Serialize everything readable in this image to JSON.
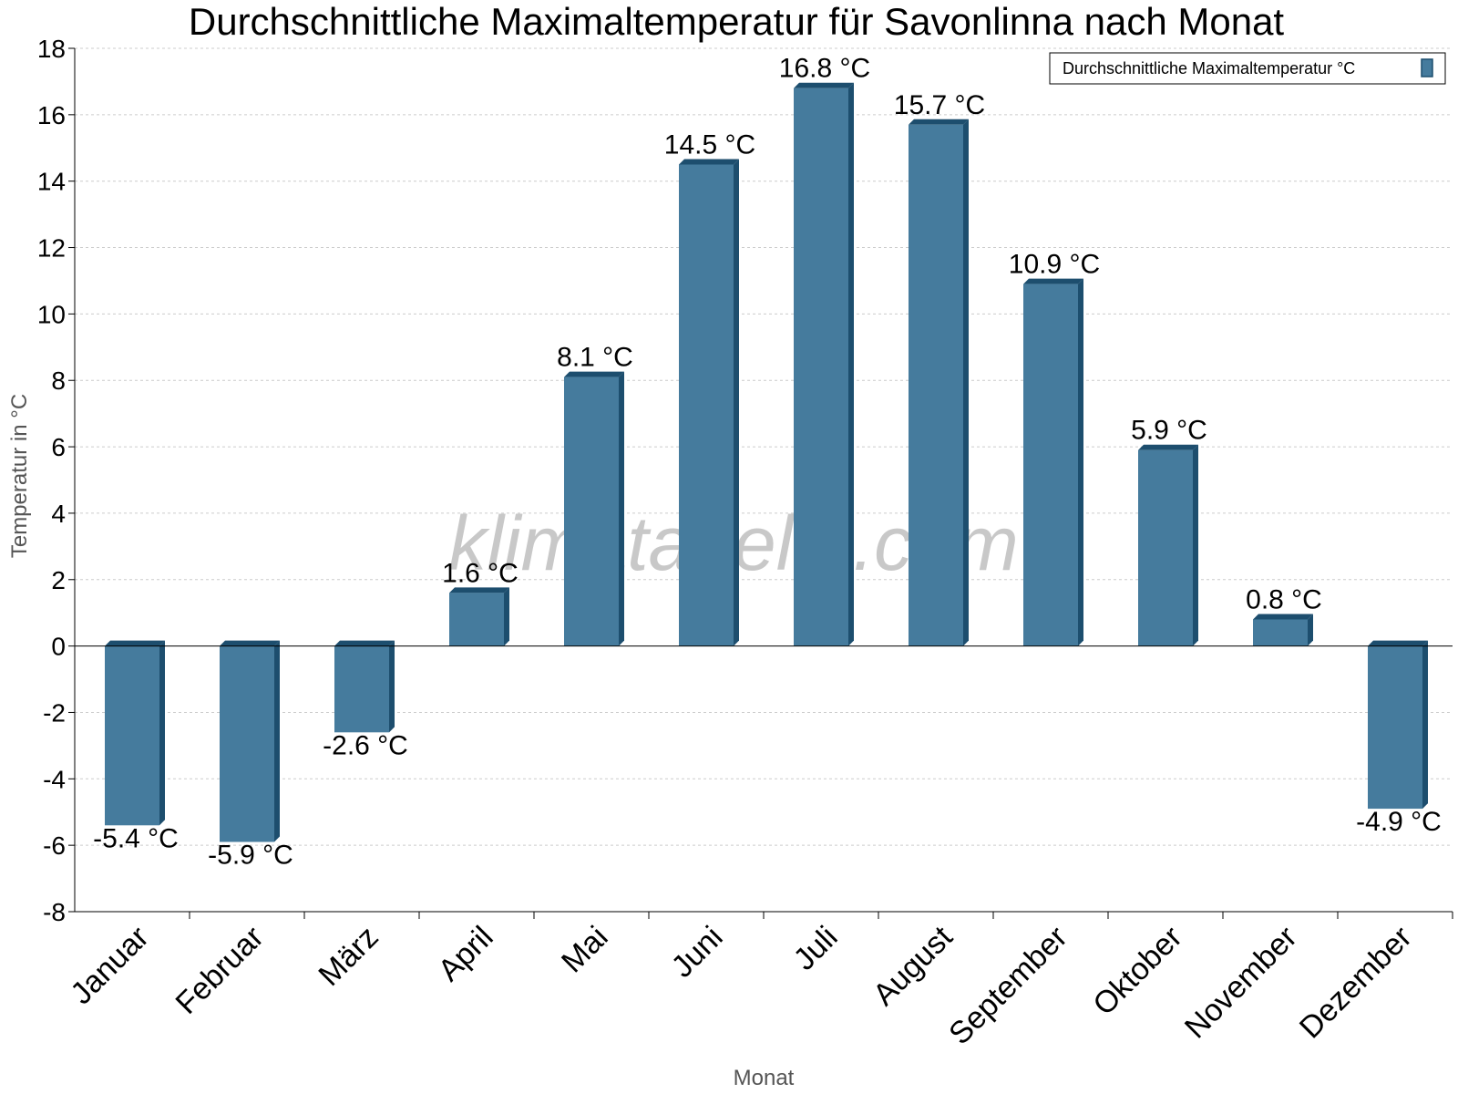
{
  "chart_data": {
    "type": "bar",
    "title": "Durchschnittliche Maximaltemperatur für Savonlinna nach Monat",
    "xlabel": "Monat",
    "ylabel": "Temperatur in °C",
    "ylim": [
      -8,
      18
    ],
    "yticks": [
      -8,
      -6,
      -4,
      -2,
      0,
      2,
      4,
      6,
      8,
      10,
      12,
      14,
      16,
      18
    ],
    "grid": true,
    "legend_position": "top-right",
    "categories": [
      "Januar",
      "Februar",
      "März",
      "April",
      "Mai",
      "Juni",
      "Juli",
      "August",
      "September",
      "Oktober",
      "November",
      "Dezember"
    ],
    "series": [
      {
        "name": "Durchschnittliche Maximaltemperatur °C",
        "values": [
          -5.4,
          -5.9,
          -2.6,
          1.6,
          8.1,
          14.5,
          16.8,
          15.7,
          10.9,
          5.9,
          0.8,
          -4.9
        ],
        "data_labels": [
          "-5.4 °C",
          "-5.9 °C",
          "-2.6 °C",
          "1.6 °C",
          "8.1 °C",
          "14.5 °C",
          "16.8 °C",
          "15.7 °C",
          "10.9 °C",
          "5.9 °C",
          "0.8 °C",
          "-4.9 °C"
        ]
      }
    ],
    "colors": {
      "bar_face": "#457b9d",
      "bar_side": "#1d4e6e",
      "grid": "#cccccc",
      "axis": "#000000"
    },
    "watermark": "klimatabelle.com"
  }
}
